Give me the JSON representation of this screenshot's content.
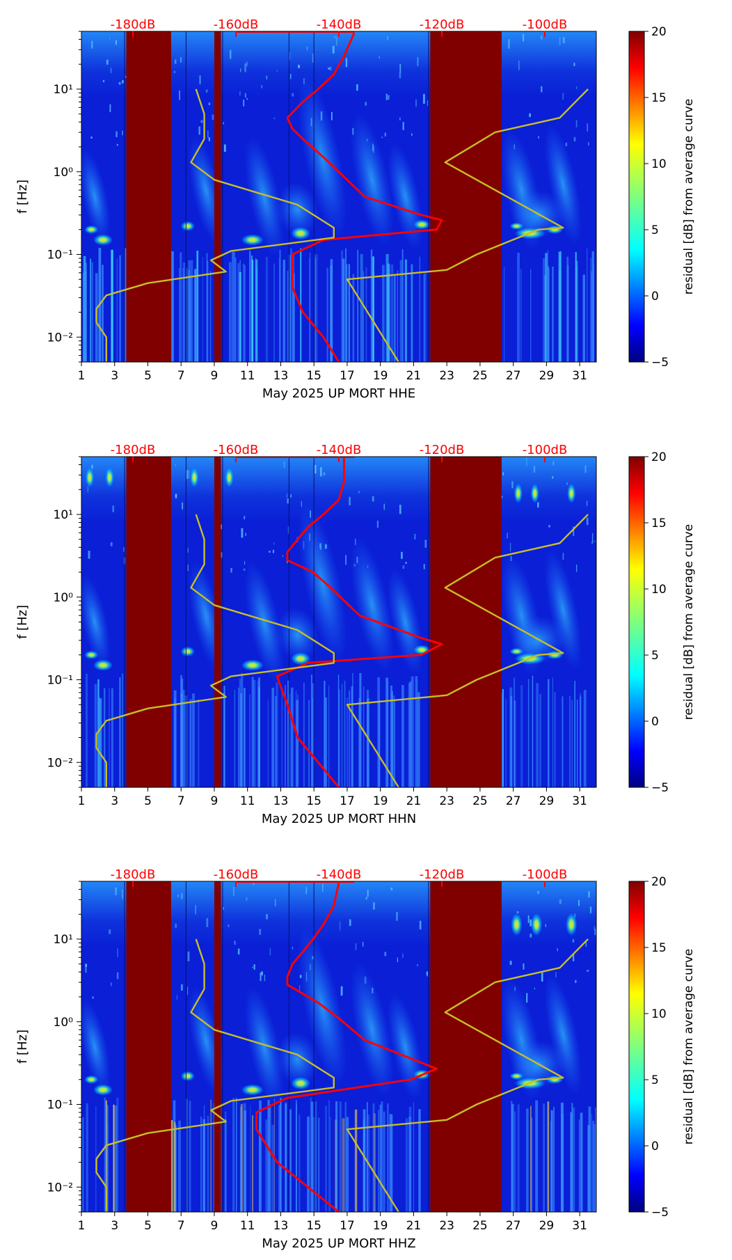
{
  "panels": [
    {
      "xlabel": "May 2025 UP MORT  HHE"
    },
    {
      "xlabel": "May 2025 UP MORT  HHN"
    },
    {
      "xlabel": "May 2025 UP MORT  HHZ"
    }
  ],
  "colorbar": {
    "label": "residual [dB] from average curve",
    "ticks": [
      "20",
      "15",
      "10",
      "5",
      "0",
      "−5"
    ]
  },
  "chart_data": [
    {
      "type": "heatmap",
      "title": "",
      "xlabel": "May 2025 UP MORT  HHE",
      "ylabel": "f [Hz]",
      "x_ticks": [
        1,
        3,
        5,
        7,
        9,
        11,
        13,
        15,
        17,
        19,
        21,
        23,
        25,
        27,
        29,
        31
      ],
      "xlim": [
        1,
        32
      ],
      "y_scale": "log",
      "ylim": [
        0.005,
        50
      ],
      "y_tick_labels": [
        "10⁻²",
        "10⁻¹",
        "10⁰",
        "10¹"
      ],
      "top_axis_labels": [
        "-180dB",
        "-160dB",
        "-140dB",
        "-120dB",
        "-100dB"
      ],
      "colorbar": {
        "label": "residual [dB] from average curve",
        "range": [
          -5,
          20
        ]
      },
      "gap_days": [
        [
          3.7,
          6.4
        ],
        [
          9.0,
          9.4
        ],
        [
          22.0,
          26.3
        ]
      ],
      "series": [
        {
          "color": "#ff0000",
          "x_unit": "dB",
          "points": [
            [
              -140,
              0.005
            ],
            [
              -143,
              0.01
            ],
            [
              -147,
              0.02
            ],
            [
              -149,
              0.04
            ],
            [
              -149,
              0.1
            ],
            [
              -143,
              0.15
            ],
            [
              -121,
              0.2
            ],
            [
              -120,
              0.26
            ],
            [
              -124,
              0.3
            ],
            [
              -135,
              0.5
            ],
            [
              -140,
              1.0
            ],
            [
              -143,
              1.5
            ],
            [
              -147,
              2.5
            ],
            [
              -149,
              3.3
            ],
            [
              -150,
              4.5
            ],
            [
              -147,
              7
            ],
            [
              -144,
              10
            ],
            [
              -141,
              15
            ],
            [
              -139,
              25
            ],
            [
              -137,
              48
            ]
          ]
        },
        {
          "color": "#c8be28",
          "x_unit": "day",
          "points": [
            [
              2.5,
              0.005
            ],
            [
              2.5,
              0.01
            ],
            [
              1.9,
              0.015
            ],
            [
              1.9,
              0.022
            ],
            [
              2.5,
              0.032
            ],
            [
              5.0,
              0.045
            ],
            [
              9.7,
              0.062
            ],
            [
              8.8,
              0.085
            ],
            [
              10,
              0.11
            ],
            [
              16.2,
              0.16
            ],
            [
              16.2,
              0.21
            ],
            [
              14,
              0.4
            ],
            [
              9,
              0.8
            ],
            [
              7.6,
              1.3
            ],
            [
              8.4,
              2.5
            ],
            [
              8.4,
              5
            ],
            [
              7.9,
              10
            ]
          ]
        },
        {
          "color": "#c8be28",
          "x_unit": "day",
          "points": [
            [
              20.1,
              0.005
            ],
            [
              17,
              0.05
            ],
            [
              23,
              0.065
            ],
            [
              24.8,
              0.1
            ],
            [
              28.5,
              0.2
            ],
            [
              30,
              0.21
            ],
            [
              22.9,
              1.3
            ],
            [
              25.9,
              3
            ],
            [
              29.8,
              4.5
            ],
            [
              31.5,
              10
            ]
          ]
        }
      ]
    },
    {
      "type": "heatmap",
      "title": "",
      "xlabel": "May 2025 UP MORT  HHN",
      "ylabel": "f [Hz]",
      "x_ticks": [
        1,
        3,
        5,
        7,
        9,
        11,
        13,
        15,
        17,
        19,
        21,
        23,
        25,
        27,
        29,
        31
      ],
      "xlim": [
        1,
        32
      ],
      "y_scale": "log",
      "ylim": [
        0.005,
        50
      ],
      "y_tick_labels": [
        "10⁻²",
        "10⁻¹",
        "10⁰",
        "10¹"
      ],
      "top_axis_labels": [
        "-180dB",
        "-160dB",
        "-140dB",
        "-120dB",
        "-100dB"
      ],
      "colorbar": {
        "label": "residual [dB] from average curve",
        "range": [
          -5,
          20
        ]
      },
      "gap_days": [
        [
          3.7,
          6.4
        ],
        [
          9.0,
          9.4
        ],
        [
          22.0,
          26.3
        ]
      ],
      "series": [
        {
          "color": "#ff0000",
          "x_unit": "dB",
          "points": [
            [
              -140,
              0.005
            ],
            [
              -144,
              0.01
            ],
            [
              -148,
              0.02
            ],
            [
              -150,
              0.05
            ],
            [
              -152,
              0.11
            ],
            [
              -146,
              0.16
            ],
            [
              -124,
              0.2
            ],
            [
              -120,
              0.27
            ],
            [
              -124,
              0.32
            ],
            [
              -136,
              0.6
            ],
            [
              -141,
              1.2
            ],
            [
              -145,
              2
            ],
            [
              -150,
              2.8
            ],
            [
              -150,
              3.5
            ],
            [
              -148,
              5
            ],
            [
              -146,
              7
            ],
            [
              -143,
              10
            ],
            [
              -140,
              15
            ],
            [
              -139,
              25
            ],
            [
              -139,
              48
            ]
          ]
        },
        {
          "color": "#c8be28",
          "x_unit": "day",
          "points": [
            [
              2.5,
              0.005
            ],
            [
              2.5,
              0.01
            ],
            [
              1.9,
              0.015
            ],
            [
              1.9,
              0.022
            ],
            [
              2.5,
              0.032
            ],
            [
              5.0,
              0.045
            ],
            [
              9.7,
              0.062
            ],
            [
              8.8,
              0.085
            ],
            [
              10,
              0.11
            ],
            [
              16.2,
              0.16
            ],
            [
              16.2,
              0.21
            ],
            [
              14,
              0.4
            ],
            [
              9,
              0.8
            ],
            [
              7.6,
              1.3
            ],
            [
              8.4,
              2.5
            ],
            [
              8.4,
              5
            ],
            [
              7.9,
              10
            ]
          ]
        },
        {
          "color": "#c8be28",
          "x_unit": "day",
          "points": [
            [
              20.1,
              0.005
            ],
            [
              17,
              0.05
            ],
            [
              23,
              0.065
            ],
            [
              24.8,
              0.1
            ],
            [
              28.5,
              0.2
            ],
            [
              30,
              0.21
            ],
            [
              22.9,
              1.3
            ],
            [
              25.9,
              3
            ],
            [
              29.8,
              4.5
            ],
            [
              31.5,
              10
            ]
          ]
        }
      ]
    },
    {
      "type": "heatmap",
      "title": "",
      "xlabel": "May 2025 UP MORT  HHZ",
      "ylabel": "f [Hz]",
      "x_ticks": [
        1,
        3,
        5,
        7,
        9,
        11,
        13,
        15,
        17,
        19,
        21,
        23,
        25,
        27,
        29,
        31
      ],
      "xlim": [
        1,
        32
      ],
      "y_scale": "log",
      "ylim": [
        0.005,
        50
      ],
      "y_tick_labels": [
        "10⁻²",
        "10⁻¹",
        "10⁰",
        "10¹"
      ],
      "top_axis_labels": [
        "-180dB",
        "-160dB",
        "-140dB",
        "-120dB",
        "-100dB"
      ],
      "colorbar": {
        "label": "residual [dB] from average curve",
        "range": [
          -5,
          20
        ]
      },
      "gap_days": [
        [
          3.7,
          6.4
        ],
        [
          9.0,
          9.4
        ],
        [
          22.0,
          26.3
        ]
      ],
      "series": [
        {
          "color": "#ff0000",
          "x_unit": "dB",
          "points": [
            [
              -140,
              0.005
            ],
            [
              -146,
              0.01
            ],
            [
              -152,
              0.02
            ],
            [
              -156,
              0.05
            ],
            [
              -156,
              0.08
            ],
            [
              -150,
              0.12
            ],
            [
              -126,
              0.2
            ],
            [
              -121,
              0.27
            ],
            [
              -124,
              0.32
            ],
            [
              -135,
              0.6
            ],
            [
              -140,
              1.1
            ],
            [
              -144,
              1.7
            ],
            [
              -150,
              2.8
            ],
            [
              -150,
              3.5
            ],
            [
              -149,
              5
            ],
            [
              -147,
              7
            ],
            [
              -145,
              10
            ],
            [
              -143,
              15
            ],
            [
              -141,
              25
            ],
            [
              -140,
              48
            ]
          ]
        },
        {
          "color": "#c8be28",
          "x_unit": "day",
          "points": [
            [
              2.5,
              0.005
            ],
            [
              2.5,
              0.01
            ],
            [
              1.9,
              0.015
            ],
            [
              1.9,
              0.022
            ],
            [
              2.5,
              0.032
            ],
            [
              5.0,
              0.045
            ],
            [
              9.7,
              0.062
            ],
            [
              8.8,
              0.085
            ],
            [
              10,
              0.11
            ],
            [
              16.2,
              0.16
            ],
            [
              16.2,
              0.21
            ],
            [
              14,
              0.4
            ],
            [
              9,
              0.8
            ],
            [
              7.6,
              1.3
            ],
            [
              8.4,
              2.5
            ],
            [
              8.4,
              5
            ],
            [
              7.9,
              10
            ]
          ]
        },
        {
          "color": "#c8be28",
          "x_unit": "day",
          "points": [
            [
              20.1,
              0.005
            ],
            [
              17,
              0.05
            ],
            [
              23,
              0.065
            ],
            [
              24.8,
              0.1
            ],
            [
              28.5,
              0.2
            ],
            [
              30,
              0.21
            ],
            [
              22.9,
              1.3
            ],
            [
              25.9,
              3
            ],
            [
              29.8,
              4.5
            ],
            [
              31.5,
              10
            ]
          ]
        }
      ]
    }
  ]
}
